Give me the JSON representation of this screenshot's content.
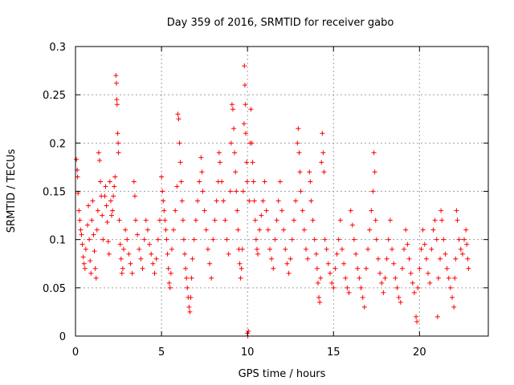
{
  "chart_data": {
    "type": "scatter",
    "title": "Day 359 of 2016, SRMTID for receiver gabo",
    "xlabel": "GPS time / hours",
    "ylabel": "SRMTID / TECUs",
    "xlim": [
      0,
      24
    ],
    "ylim": [
      0,
      0.3
    ],
    "x_ticks": [
      0,
      5,
      10,
      15,
      20
    ],
    "y_ticks": [
      0,
      0.05,
      0.1,
      0.15,
      0.2,
      0.25,
      0.3
    ],
    "x_tick_labels": [
      "0",
      "5",
      "10",
      "15",
      "20"
    ],
    "y_tick_labels": [
      "0",
      "0.05",
      "0.1",
      "0.15",
      "0.2",
      "0.25",
      "0.3"
    ],
    "grid": true,
    "marker": "+",
    "color": "#ff0000",
    "series": [
      {
        "name": "SRMTID",
        "points": [
          [
            0.05,
            0.183
          ],
          [
            0.1,
            0.172
          ],
          [
            0.12,
            0.165
          ],
          [
            0.15,
            0.148
          ],
          [
            0.2,
            0.13
          ],
          [
            0.25,
            0.12
          ],
          [
            0.3,
            0.11
          ],
          [
            0.35,
            0.105
          ],
          [
            0.4,
            0.095
          ],
          [
            0.45,
            0.082
          ],
          [
            0.5,
            0.075
          ],
          [
            0.55,
            0.07
          ],
          [
            0.6,
            0.09
          ],
          [
            0.7,
            0.115
          ],
          [
            0.75,
            0.135
          ],
          [
            0.8,
            0.1
          ],
          [
            0.85,
            0.078
          ],
          [
            0.9,
            0.065
          ],
          [
            0.95,
            0.12
          ],
          [
            1.0,
            0.14
          ],
          [
            1.05,
            0.105
          ],
          [
            1.1,
            0.088
          ],
          [
            1.15,
            0.07
          ],
          [
            1.2,
            0.06
          ],
          [
            1.25,
            0.11
          ],
          [
            1.3,
            0.13
          ],
          [
            1.35,
            0.19
          ],
          [
            1.4,
            0.182
          ],
          [
            1.45,
            0.16
          ],
          [
            1.5,
            0.145
          ],
          [
            1.55,
            0.125
          ],
          [
            1.6,
            0.1
          ],
          [
            1.7,
            0.145
          ],
          [
            1.75,
            0.155
          ],
          [
            1.8,
            0.135
          ],
          [
            1.85,
            0.118
          ],
          [
            1.9,
            0.098
          ],
          [
            1.95,
            0.085
          ],
          [
            2.0,
            0.16
          ],
          [
            2.05,
            0.14
          ],
          [
            2.1,
            0.125
          ],
          [
            2.15,
            0.13
          ],
          [
            2.2,
            0.145
          ],
          [
            2.25,
            0.155
          ],
          [
            2.3,
            0.165
          ],
          [
            2.35,
            0.27
          ],
          [
            2.38,
            0.262
          ],
          [
            2.4,
            0.245
          ],
          [
            2.42,
            0.24
          ],
          [
            2.45,
            0.21
          ],
          [
            2.48,
            0.2
          ],
          [
            2.5,
            0.19
          ],
          [
            2.55,
            0.12
          ],
          [
            2.6,
            0.095
          ],
          [
            2.65,
            0.08
          ],
          [
            2.7,
            0.065
          ],
          [
            2.75,
            0.07
          ],
          [
            2.8,
            0.09
          ],
          [
            2.9,
            0.11
          ],
          [
            3.0,
            0.1
          ],
          [
            3.1,
            0.085
          ],
          [
            3.2,
            0.075
          ],
          [
            3.3,
            0.065
          ],
          [
            3.4,
            0.16
          ],
          [
            3.45,
            0.145
          ],
          [
            3.5,
            0.12
          ],
          [
            3.6,
            0.105
          ],
          [
            3.7,
            0.09
          ],
          [
            3.8,
            0.08
          ],
          [
            3.9,
            0.07
          ],
          [
            4.0,
            0.1
          ],
          [
            4.1,
            0.12
          ],
          [
            4.2,
            0.11
          ],
          [
            4.3,
            0.095
          ],
          [
            4.4,
            0.085
          ],
          [
            4.5,
            0.075
          ],
          [
            4.6,
            0.065
          ],
          [
            4.7,
            0.08
          ],
          [
            4.8,
            0.1
          ],
          [
            4.9,
            0.12
          ],
          [
            5.0,
            0.165
          ],
          [
            5.05,
            0.15
          ],
          [
            5.1,
            0.14
          ],
          [
            5.15,
            0.13
          ],
          [
            5.2,
            0.12
          ],
          [
            5.25,
            0.11
          ],
          [
            5.3,
            0.1
          ],
          [
            5.35,
            0.085
          ],
          [
            5.4,
            0.07
          ],
          [
            5.45,
            0.055
          ],
          [
            5.5,
            0.05
          ],
          [
            5.55,
            0.065
          ],
          [
            5.6,
            0.09
          ],
          [
            5.7,
            0.11
          ],
          [
            5.8,
            0.13
          ],
          [
            5.9,
            0.155
          ],
          [
            5.95,
            0.23
          ],
          [
            6.0,
            0.225
          ],
          [
            6.05,
            0.2
          ],
          [
            6.1,
            0.18
          ],
          [
            6.15,
            0.16
          ],
          [
            6.2,
            0.14
          ],
          [
            6.25,
            0.12
          ],
          [
            6.3,
            0.1
          ],
          [
            6.35,
            0.085
          ],
          [
            6.4,
            0.07
          ],
          [
            6.45,
            0.06
          ],
          [
            6.5,
            0.05
          ],
          [
            6.55,
            0.04
          ],
          [
            6.6,
            0.03
          ],
          [
            6.65,
            0.025
          ],
          [
            6.7,
            0.04
          ],
          [
            6.75,
            0.06
          ],
          [
            6.8,
            0.08
          ],
          [
            6.9,
            0.1
          ],
          [
            7.0,
            0.12
          ],
          [
            7.1,
            0.14
          ],
          [
            7.2,
            0.16
          ],
          [
            7.3,
            0.185
          ],
          [
            7.35,
            0.17
          ],
          [
            7.4,
            0.15
          ],
          [
            7.5,
            0.13
          ],
          [
            7.6,
            0.11
          ],
          [
            7.7,
            0.09
          ],
          [
            7.8,
            0.075
          ],
          [
            7.9,
            0.06
          ],
          [
            8.0,
            0.1
          ],
          [
            8.1,
            0.12
          ],
          [
            8.2,
            0.14
          ],
          [
            8.3,
            0.16
          ],
          [
            8.35,
            0.19
          ],
          [
            8.4,
            0.18
          ],
          [
            8.5,
            0.16
          ],
          [
            8.6,
            0.14
          ],
          [
            8.7,
            0.12
          ],
          [
            8.8,
            0.1
          ],
          [
            8.9,
            0.085
          ],
          [
            9.0,
            0.15
          ],
          [
            9.05,
            0.2
          ],
          [
            9.1,
            0.24
          ],
          [
            9.15,
            0.235
          ],
          [
            9.2,
            0.215
          ],
          [
            9.25,
            0.19
          ],
          [
            9.3,
            0.17
          ],
          [
            9.35,
            0.15
          ],
          [
            9.4,
            0.13
          ],
          [
            9.45,
            0.11
          ],
          [
            9.5,
            0.09
          ],
          [
            9.55,
            0.075
          ],
          [
            9.6,
            0.06
          ],
          [
            9.65,
            0.07
          ],
          [
            9.7,
            0.09
          ],
          [
            9.75,
            0.15
          ],
          [
            9.8,
            0.22
          ],
          [
            9.82,
            0.28
          ],
          [
            9.85,
            0.26
          ],
          [
            9.88,
            0.24
          ],
          [
            9.9,
            0.21
          ],
          [
            9.95,
            0.18
          ],
          [
            9.98,
            0.16
          ],
          [
            10.0,
            0.003
          ],
          [
            10.02,
            0.0
          ],
          [
            10.05,
            0.005
          ],
          [
            10.1,
            0.14
          ],
          [
            10.15,
            0.2
          ],
          [
            10.2,
            0.235
          ],
          [
            10.25,
            0.2
          ],
          [
            10.3,
            0.18
          ],
          [
            10.35,
            0.16
          ],
          [
            10.4,
            0.14
          ],
          [
            10.45,
            0.12
          ],
          [
            10.5,
            0.1
          ],
          [
            10.55,
            0.09
          ],
          [
            10.6,
            0.085
          ],
          [
            10.7,
            0.11
          ],
          [
            10.8,
            0.125
          ],
          [
            10.9,
            0.14
          ],
          [
            11.0,
            0.16
          ],
          [
            11.1,
            0.13
          ],
          [
            11.2,
            0.11
          ],
          [
            11.3,
            0.09
          ],
          [
            11.4,
            0.08
          ],
          [
            11.5,
            0.07
          ],
          [
            11.6,
            0.1
          ],
          [
            11.7,
            0.12
          ],
          [
            11.8,
            0.14
          ],
          [
            11.9,
            0.16
          ],
          [
            12.0,
            0.13
          ],
          [
            12.1,
            0.11
          ],
          [
            12.2,
            0.09
          ],
          [
            12.3,
            0.075
          ],
          [
            12.4,
            0.065
          ],
          [
            12.5,
            0.08
          ],
          [
            12.6,
            0.1
          ],
          [
            12.7,
            0.12
          ],
          [
            12.8,
            0.14
          ],
          [
            12.9,
            0.2
          ],
          [
            12.95,
            0.215
          ],
          [
            13.0,
            0.19
          ],
          [
            13.05,
            0.17
          ],
          [
            13.1,
            0.15
          ],
          [
            13.2,
            0.13
          ],
          [
            13.3,
            0.11
          ],
          [
            13.4,
            0.09
          ],
          [
            13.5,
            0.08
          ],
          [
            13.6,
            0.17
          ],
          [
            13.65,
            0.16
          ],
          [
            13.7,
            0.14
          ],
          [
            13.8,
            0.12
          ],
          [
            13.9,
            0.1
          ],
          [
            14.0,
            0.085
          ],
          [
            14.05,
            0.07
          ],
          [
            14.1,
            0.055
          ],
          [
            14.15,
            0.04
          ],
          [
            14.2,
            0.035
          ],
          [
            14.25,
            0.06
          ],
          [
            14.3,
            0.18
          ],
          [
            14.35,
            0.21
          ],
          [
            14.4,
            0.19
          ],
          [
            14.45,
            0.17
          ],
          [
            14.5,
            0.1
          ],
          [
            14.6,
            0.09
          ],
          [
            14.7,
            0.075
          ],
          [
            14.8,
            0.065
          ],
          [
            14.9,
            0.055
          ],
          [
            15.0,
            0.05
          ],
          [
            15.1,
            0.07
          ],
          [
            15.2,
            0.085
          ],
          [
            15.3,
            0.1
          ],
          [
            15.4,
            0.12
          ],
          [
            15.5,
            0.09
          ],
          [
            15.6,
            0.075
          ],
          [
            15.7,
            0.06
          ],
          [
            15.8,
            0.05
          ],
          [
            15.9,
            0.045
          ],
          [
            16.0,
            0.13
          ],
          [
            16.1,
            0.115
          ],
          [
            16.2,
            0.1
          ],
          [
            16.3,
            0.085
          ],
          [
            16.4,
            0.07
          ],
          [
            16.5,
            0.06
          ],
          [
            16.6,
            0.05
          ],
          [
            16.7,
            0.04
          ],
          [
            16.8,
            0.03
          ],
          [
            16.9,
            0.07
          ],
          [
            17.0,
            0.09
          ],
          [
            17.1,
            0.11
          ],
          [
            17.2,
            0.13
          ],
          [
            17.3,
            0.15
          ],
          [
            17.35,
            0.19
          ],
          [
            17.4,
            0.17
          ],
          [
            17.45,
            0.12
          ],
          [
            17.5,
            0.1
          ],
          [
            17.6,
            0.08
          ],
          [
            17.7,
            0.065
          ],
          [
            17.8,
            0.055
          ],
          [
            17.9,
            0.045
          ],
          [
            18.0,
            0.06
          ],
          [
            18.1,
            0.08
          ],
          [
            18.2,
            0.1
          ],
          [
            18.3,
            0.12
          ],
          [
            18.4,
            0.09
          ],
          [
            18.5,
            0.075
          ],
          [
            18.6,
            0.06
          ],
          [
            18.7,
            0.05
          ],
          [
            18.8,
            0.04
          ],
          [
            18.9,
            0.035
          ],
          [
            19.0,
            0.07
          ],
          [
            19.1,
            0.09
          ],
          [
            19.2,
            0.11
          ],
          [
            19.3,
            0.095
          ],
          [
            19.4,
            0.08
          ],
          [
            19.5,
            0.065
          ],
          [
            19.6,
            0.055
          ],
          [
            19.7,
            0.045
          ],
          [
            19.8,
            0.02
          ],
          [
            19.85,
            0.015
          ],
          [
            19.9,
            0.05
          ],
          [
            20.0,
            0.07
          ],
          [
            20.1,
            0.09
          ],
          [
            20.2,
            0.11
          ],
          [
            20.3,
            0.095
          ],
          [
            20.4,
            0.08
          ],
          [
            20.5,
            0.065
          ],
          [
            20.6,
            0.055
          ],
          [
            20.7,
            0.09
          ],
          [
            20.8,
            0.11
          ],
          [
            20.9,
            0.12
          ],
          [
            21.0,
            0.1
          ],
          [
            21.05,
            0.02
          ],
          [
            21.1,
            0.06
          ],
          [
            21.2,
            0.08
          ],
          [
            21.25,
            0.13
          ],
          [
            21.3,
            0.12
          ],
          [
            21.4,
            0.1
          ],
          [
            21.5,
            0.085
          ],
          [
            21.6,
            0.07
          ],
          [
            21.7,
            0.06
          ],
          [
            21.8,
            0.05
          ],
          [
            21.9,
            0.04
          ],
          [
            22.0,
            0.03
          ],
          [
            22.05,
            0.06
          ],
          [
            22.1,
            0.08
          ],
          [
            22.15,
            0.13
          ],
          [
            22.2,
            0.12
          ],
          [
            22.3,
            0.1
          ],
          [
            22.4,
            0.09
          ],
          [
            22.5,
            0.085
          ],
          [
            22.6,
            0.1
          ],
          [
            22.7,
            0.11
          ],
          [
            22.75,
            0.095
          ],
          [
            22.8,
            0.08
          ],
          [
            22.85,
            0.07
          ]
        ]
      }
    ]
  }
}
